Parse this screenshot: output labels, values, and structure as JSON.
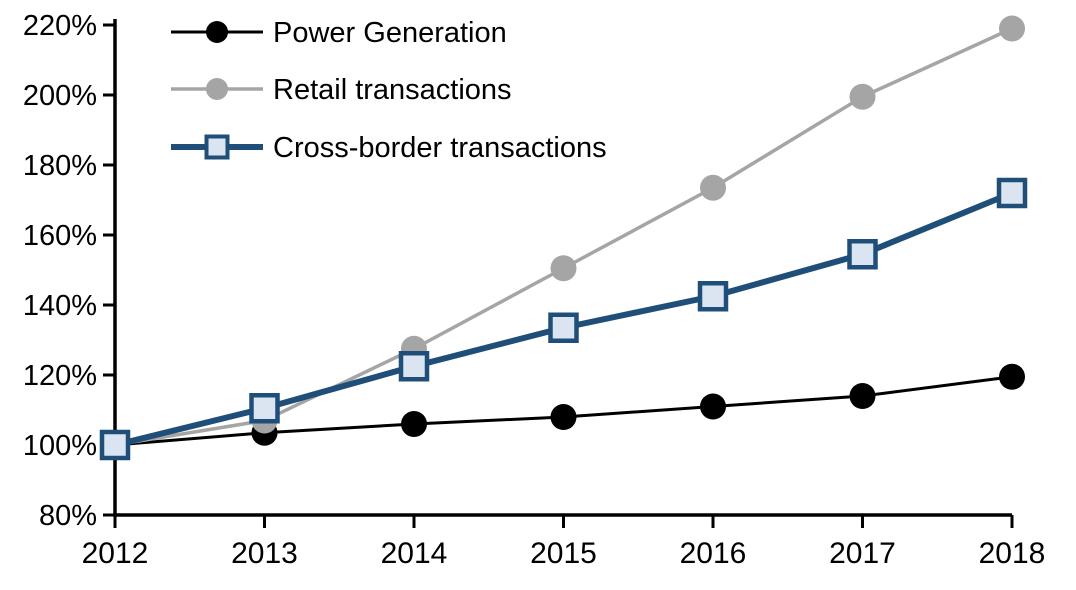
{
  "chart_data": {
    "type": "line",
    "title": "",
    "xlabel": "",
    "ylabel": "",
    "x": [
      2012,
      2013,
      2014,
      2015,
      2016,
      2017,
      2018
    ],
    "x_tick_labels": [
      "2012",
      "2013",
      "2014",
      "2015",
      "2016",
      "2017",
      "2018"
    ],
    "y_tick_labels": [
      "80%",
      "100%",
      "120%",
      "140%",
      "160%",
      "180%",
      "200%",
      "220%"
    ],
    "ylim": [
      80,
      220
    ],
    "y_tick_step": 20,
    "grid": false,
    "legend_position": "top-left",
    "background_color": "#ffffff",
    "axis_color": "#000000",
    "series": [
      {
        "name": "Power Generation",
        "values": [
          100,
          103.5,
          106,
          108,
          111,
          114,
          119.5
        ],
        "color": "#000000",
        "marker": "circle",
        "marker_fill": "#000000",
        "line_width": 3
      },
      {
        "name": "Retail transactions",
        "values": [
          100,
          107,
          127.5,
          150.5,
          173.5,
          199.5,
          219
        ],
        "color": "#a5a5a5",
        "marker": "circle",
        "marker_fill": "#a5a5a5",
        "line_width": 3.5
      },
      {
        "name": "Cross-border transactions",
        "values": [
          100,
          110.5,
          122.5,
          133.5,
          142.5,
          154.5,
          172
        ],
        "color": "#1f4e79",
        "marker": "square",
        "marker_fill": "#dbe5f1",
        "line_width": 6
      }
    ]
  }
}
